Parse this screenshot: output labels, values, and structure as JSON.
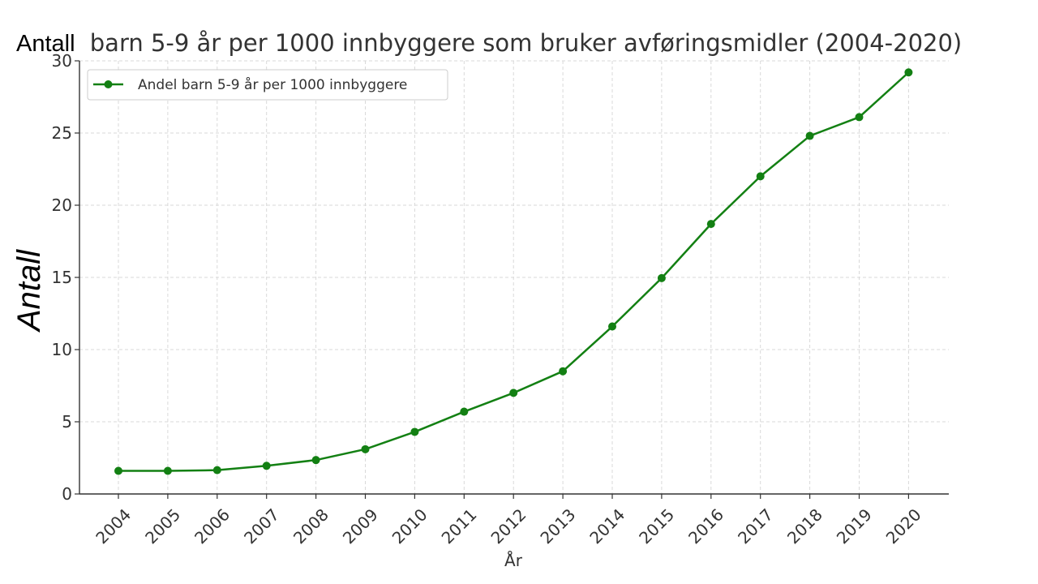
{
  "chart_data": {
    "type": "line",
    "title_first_word": "Antall",
    "title_rest": "barn 5-9 år per 1000 innbyggere som bruker avføringsmidler (2004-2020)",
    "xlabel": "År",
    "ylabel": "Antall",
    "x": [
      "2004",
      "2005",
      "2006",
      "2007",
      "2008",
      "2009",
      "2010",
      "2011",
      "2012",
      "2013",
      "2014",
      "2015",
      "2016",
      "2017",
      "2018",
      "2019",
      "2020"
    ],
    "ylim": [
      0,
      30
    ],
    "yticks": [
      "0",
      "5",
      "10",
      "15",
      "20",
      "25",
      "30"
    ],
    "grid": true,
    "legend_position": "top-left",
    "series": [
      {
        "name": "Andel barn 5-9 år per 1000 innbyggere",
        "color": "#138013",
        "values": [
          1.6,
          1.6,
          1.65,
          1.95,
          2.35,
          3.1,
          4.3,
          5.7,
          7.0,
          8.5,
          11.6,
          14.95,
          18.7,
          22.0,
          24.8,
          26.1,
          29.2
        ]
      }
    ]
  }
}
